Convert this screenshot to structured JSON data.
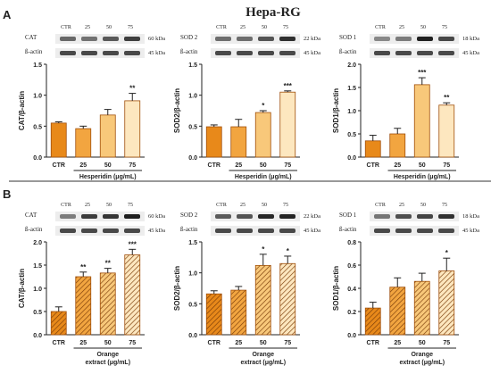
{
  "figure": {
    "title": "Hepa-RG",
    "panel_a_label": "A",
    "panel_b_label": "B"
  },
  "colors": {
    "ctr": "#e8891a",
    "c25": "#f2a540",
    "c50": "#f8c87a",
    "c75": "#fde7bf",
    "edge": "#a04f0a",
    "hatch": "#7a3c08"
  },
  "chart_data": [
    {
      "type": "bar",
      "panel": "A",
      "categories": [
        "CTR",
        "25",
        "50",
        "75"
      ],
      "values": [
        0.55,
        0.46,
        0.68,
        0.91
      ],
      "errors": [
        0.02,
        0.04,
        0.09,
        0.12
      ],
      "significance": [
        "",
        "",
        "",
        "**"
      ],
      "ylabel": "CAT/β-actin",
      "xlabel": [
        "Hesperidin (μg/mL)"
      ],
      "ylim": [
        0,
        1.5
      ],
      "yticks": [
        "0.0",
        "0.5",
        "1.0",
        "1.5"
      ],
      "hatched": false,
      "blot": {
        "lanes": [
          "CTR",
          "25",
          "50",
          "75"
        ],
        "rows": [
          {
            "name": "CAT",
            "size": "60 kDa"
          },
          {
            "name": "ß-actin",
            "size": "45 kDa"
          }
        ]
      }
    },
    {
      "type": "bar",
      "panel": "A",
      "categories": [
        "CTR",
        "25",
        "50",
        "75"
      ],
      "values": [
        0.49,
        0.49,
        0.72,
        1.05
      ],
      "errors": [
        0.03,
        0.12,
        0.03,
        0.02
      ],
      "significance": [
        "",
        "",
        "*",
        "***"
      ],
      "ylabel": "SOD2/β-actin",
      "xlabel": [
        "Hesperidin (μg/mL)"
      ],
      "ylim": [
        0,
        1.5
      ],
      "yticks": [
        "0.0",
        "0.5",
        "1.0",
        "1.5"
      ],
      "hatched": false,
      "blot": {
        "lanes": [
          "CTR",
          "25",
          "50",
          "75"
        ],
        "rows": [
          {
            "name": "SOD 2",
            "size": "22 kDa"
          },
          {
            "name": "ß-actin",
            "size": "45 kDa"
          }
        ]
      }
    },
    {
      "type": "bar",
      "panel": "A",
      "categories": [
        "CTR",
        "25",
        "50",
        "75"
      ],
      "values": [
        0.35,
        0.5,
        1.56,
        1.12
      ],
      "errors": [
        0.12,
        0.12,
        0.15,
        0.05
      ],
      "significance": [
        "",
        "",
        "***",
        "**"
      ],
      "ylabel": "SOD1/β-actin",
      "xlabel": [
        "Hesperidin (μg/mL)"
      ],
      "ylim": [
        0,
        2.0
      ],
      "yticks": [
        "0.0",
        "0.5",
        "1.0",
        "1.5",
        "2.0"
      ],
      "hatched": false,
      "blot": {
        "lanes": [
          "CTR",
          "25",
          "50",
          "75"
        ],
        "rows": [
          {
            "name": "SOD 1",
            "size": "18 kDa"
          },
          {
            "name": "ß-actin",
            "size": "45 kDa"
          }
        ]
      }
    },
    {
      "type": "bar",
      "panel": "B",
      "categories": [
        "CTR",
        "25",
        "50",
        "75"
      ],
      "values": [
        0.5,
        1.25,
        1.33,
        1.72
      ],
      "errors": [
        0.1,
        0.1,
        0.1,
        0.12
      ],
      "significance": [
        "",
        "**",
        "**",
        "***"
      ],
      "ylabel": "CAT/β-actin",
      "xlabel": [
        "Orange",
        "extract (μg/mL)"
      ],
      "ylim": [
        0,
        2.0
      ],
      "yticks": [
        "0.0",
        "0.5",
        "1.0",
        "1.5",
        "2.0"
      ],
      "hatched": true,
      "blot": {
        "lanes": [
          "CTR",
          "25",
          "50",
          "75"
        ],
        "rows": [
          {
            "name": "CAT",
            "size": "60 kDa"
          },
          {
            "name": "ß-actin",
            "size": "45 kDa"
          }
        ]
      }
    },
    {
      "type": "bar",
      "panel": "B",
      "categories": [
        "CTR",
        "25",
        "50",
        "75"
      ],
      "values": [
        0.66,
        0.72,
        1.12,
        1.15
      ],
      "errors": [
        0.05,
        0.06,
        0.18,
        0.12
      ],
      "significance": [
        "",
        "",
        "*",
        "*"
      ],
      "ylabel": "SOD2/β-actin",
      "xlabel": [
        "Orange",
        "extract (μg/mL)"
      ],
      "ylim": [
        0,
        1.5
      ],
      "yticks": [
        "0.0",
        "0.5",
        "1.0",
        "1.5"
      ],
      "hatched": true,
      "blot": {
        "lanes": [
          "CTR",
          "25",
          "50",
          "75"
        ],
        "rows": [
          {
            "name": "SOD 2",
            "size": "22 kDa"
          },
          {
            "name": "ß-actin",
            "size": "45 kDa"
          }
        ]
      }
    },
    {
      "type": "bar",
      "panel": "B",
      "categories": [
        "CTR",
        "25",
        "50",
        "75"
      ],
      "values": [
        0.23,
        0.41,
        0.46,
        0.55
      ],
      "errors": [
        0.05,
        0.08,
        0.07,
        0.11
      ],
      "significance": [
        "",
        "",
        "",
        "*"
      ],
      "ylabel": "SOD1/β-actin",
      "xlabel": [
        "Orange",
        "extract (μg/mL)"
      ],
      "ylim": [
        0,
        0.8
      ],
      "yticks": [
        "0.0",
        "0.2",
        "0.4",
        "0.6",
        "0.8"
      ],
      "hatched": true,
      "blot": {
        "lanes": [
          "CTR",
          "25",
          "50",
          "75"
        ],
        "rows": [
          {
            "name": "SOD 1",
            "size": "18 kDa"
          },
          {
            "name": "ß-actin",
            "size": "45 kDa"
          }
        ]
      }
    }
  ]
}
